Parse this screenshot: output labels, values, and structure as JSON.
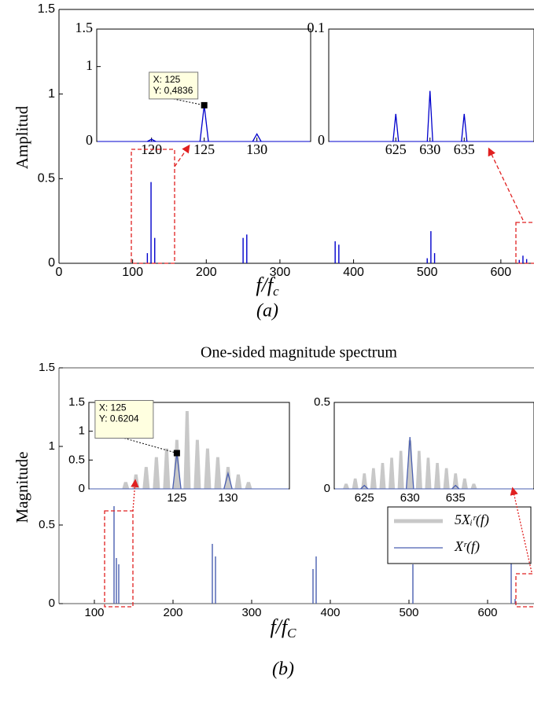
{
  "chart_data": [
    {
      "type": "stem",
      "y_label": "Amplitud",
      "x_label": {
        "text": "f/f",
        "subscript": "c"
      },
      "caption": "(a)",
      "xlim": [
        0,
        645
      ],
      "ylim": [
        0,
        1.5
      ],
      "xticks": [
        0,
        100,
        200,
        300,
        400,
        500,
        600
      ],
      "yticks": [
        0,
        0.5,
        1,
        1.5
      ],
      "series": [
        {
          "type": "stem",
          "color": "#0000cc",
          "x": [
            120,
            125,
            130,
            250,
            255,
            375,
            380,
            500,
            505,
            510,
            625,
            630,
            635
          ],
          "values": [
            0.06,
            0.48,
            0.15,
            0.15,
            0.17,
            0.13,
            0.11,
            0.03,
            0.19,
            0.06,
            0.02,
            0.045,
            0.025
          ]
        }
      ],
      "insets": [
        {
          "type": "line",
          "xlim": [
            114.8,
            135.1
          ],
          "ylim": [
            0,
            1.5
          ],
          "xticks": [
            120,
            125,
            130
          ],
          "yticks": [
            0,
            1,
            1.5
          ],
          "series": [
            {
              "type": "line",
              "color": "#0000cc",
              "x": [
                120,
                125,
                130
              ],
              "values": [
                0.03,
                0.4836,
                0.1
              ]
            }
          ],
          "datatip": {
            "x": 125,
            "y": 0.4836,
            "lines": [
              "X: 125",
              "Y: 0,4836"
            ]
          }
        },
        {
          "type": "line",
          "xlim": [
            615.2,
            645.2
          ],
          "ylim": [
            0,
            0.1
          ],
          "xticks": [
            625,
            630,
            635
          ],
          "yticks": [
            0,
            0.1
          ],
          "series": [
            {
              "type": "line",
              "color": "#0000cc",
              "x": [
                625,
                630,
                635
              ],
              "values": [
                0.0245,
                0.045,
                0.0245
              ]
            }
          ]
        }
      ]
    },
    {
      "type": "stem",
      "title": "One-sided magnitude spectrum",
      "y_label": "Magnitude",
      "x_label": {
        "text": "f/f",
        "subscript": "C"
      },
      "caption": "(b)",
      "xlim": [
        55,
        659
      ],
      "ylim": [
        0,
        1.5
      ],
      "xticks": [
        100,
        200,
        300,
        400,
        500,
        600
      ],
      "yticks": [
        0,
        0.5,
        1,
        1.5
      ],
      "series": [
        {
          "type": "stem",
          "color": "#4a5fb0",
          "x": [
            125,
            128,
            131,
            250,
            254,
            378,
            382,
            505,
            630,
            635
          ],
          "values": [
            0.62,
            0.29,
            0.25,
            0.38,
            0.3,
            0.22,
            0.3,
            0.25,
            0.26,
            0.03
          ]
        }
      ],
      "insets": [
        {
          "type": "line",
          "xlim": [
            116.4,
            136
          ],
          "ylim": [
            0,
            1.5
          ],
          "xticks": [
            125,
            130
          ],
          "yticks": [
            0,
            0.5,
            1,
            1.5
          ],
          "series": [
            {
              "type": "area",
              "name": "5Xᵢʳ(f)",
              "color": "#c8c8c8",
              "x": [
                120,
                121,
                122,
                123,
                124,
                125,
                126,
                127,
                128,
                129,
                130,
                131,
                132
              ],
              "values": [
                0.12,
                0.25,
                0.38,
                0.55,
                0.7,
                0.85,
                1.35,
                0.85,
                0.7,
                0.55,
                0.38,
                0.25,
                0.12
              ]
            },
            {
              "type": "line",
              "name": "Xʳ(f)",
              "color": "#4a5fb0",
              "x": [
                125,
                130
              ],
              "values": [
                0.6204,
                0.27
              ]
            }
          ],
          "datatip": {
            "x": 125,
            "y": 0.6204,
            "lines": [
              "X: 125",
              "Y: 0.6204"
            ]
          }
        },
        {
          "type": "line",
          "xlim": [
            621.7,
            643.6
          ],
          "ylim": [
            0,
            0.5
          ],
          "xticks": [
            625,
            630,
            635
          ],
          "yticks": [
            0,
            0.5
          ],
          "series": [
            {
              "type": "area",
              "color": "#c8c8c8",
              "x": [
                623,
                624,
                625,
                626,
                627,
                628,
                629,
                630,
                631,
                632,
                633,
                634,
                635,
                636,
                637
              ],
              "values": [
                0.03,
                0.06,
                0.09,
                0.12,
                0.15,
                0.18,
                0.22,
                0.28,
                0.22,
                0.18,
                0.15,
                0.12,
                0.09,
                0.06,
                0.03
              ]
            },
            {
              "type": "line",
              "color": "#4a5fb0",
              "x": [
                625,
                630,
                635
              ],
              "values": [
                0.02,
                0.3,
                0.02
              ]
            }
          ]
        }
      ]
    }
  ]
}
